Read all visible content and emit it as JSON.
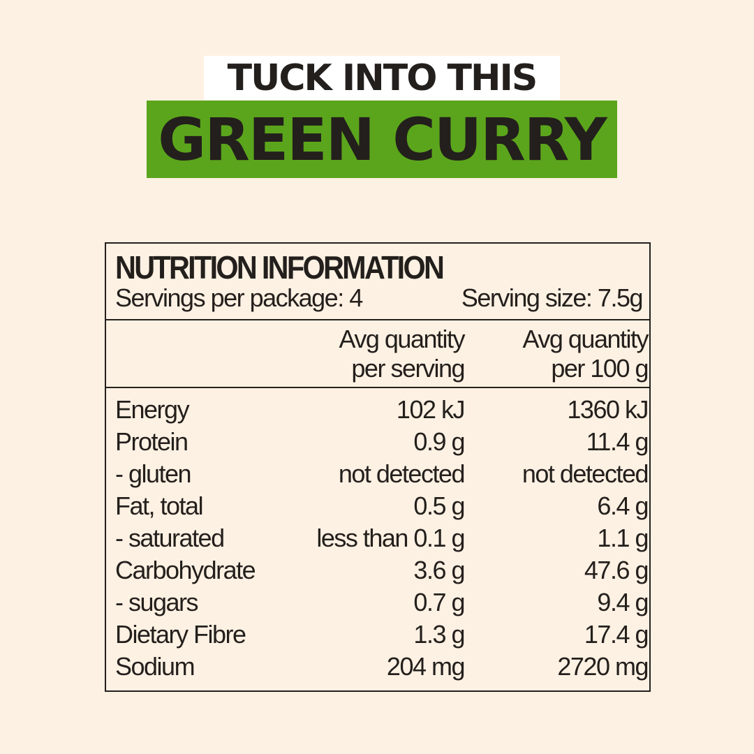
{
  "title_line1": "TUCK INTO THIS",
  "title_line2": "GREEN CURRY",
  "colors": {
    "background": "#fdf1e3",
    "accent_green": "#5ba51c",
    "text": "#231f1c"
  },
  "panel": {
    "heading": "NUTRITION INFORMATION",
    "servings": "Servings per package: 4",
    "serving_size": "Serving size: 7.5g",
    "col1": [
      "Avg quantity",
      "per serving"
    ],
    "col2": [
      "Avg quantity",
      "per 100 g"
    ],
    "rows": [
      {
        "label": "Energy",
        "per_serving": "102 kJ",
        "per_100g": "1360 kJ"
      },
      {
        "label": "Protein",
        "per_serving": "0.9 g",
        "per_100g": "11.4 g"
      },
      {
        "label": "- gluten",
        "per_serving": "not detected",
        "per_100g": "not detected"
      },
      {
        "label": "Fat, total",
        "per_serving": "0.5 g",
        "per_100g": "6.4 g"
      },
      {
        "label": "- saturated",
        "per_serving": "less than 0.1 g",
        "per_100g": "1.1 g"
      },
      {
        "label": "Carbohydrate",
        "per_serving": "3.6 g",
        "per_100g": "47.6 g"
      },
      {
        "label": "- sugars",
        "per_serving": "0.7 g",
        "per_100g": "9.4 g"
      },
      {
        "label": "Dietary Fibre",
        "per_serving": "1.3 g",
        "per_100g": "17.4 g"
      },
      {
        "label": "Sodium",
        "per_serving": "204 mg",
        "per_100g": "2720 mg"
      }
    ]
  }
}
